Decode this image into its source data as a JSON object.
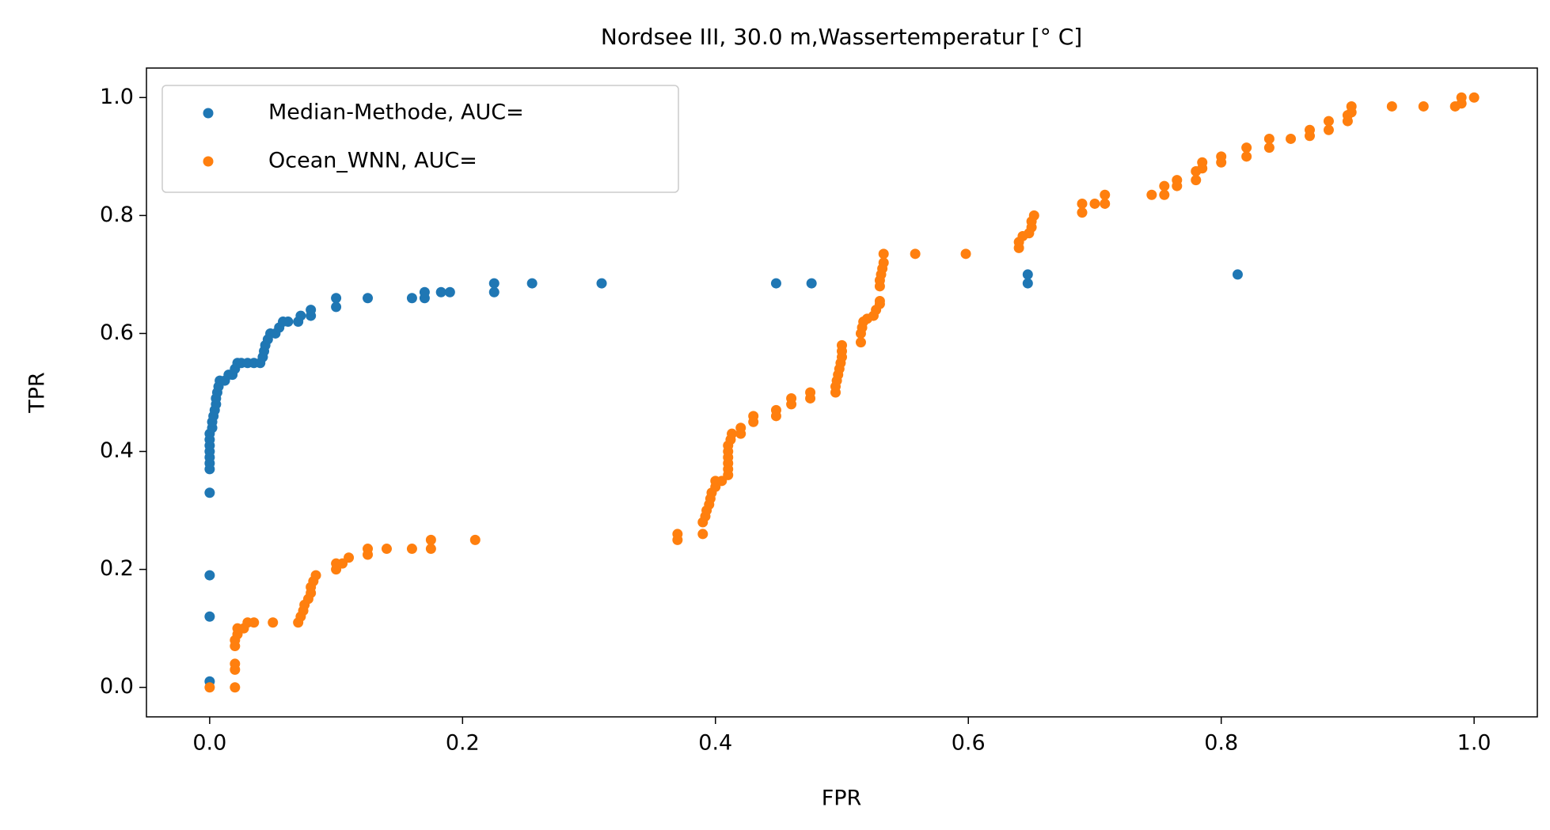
{
  "chart_data": {
    "type": "scatter",
    "title": "Nordsee III, 30.0 m,Wassertemperatur [° C]",
    "x_label": "FPR",
    "y_label": "TPR",
    "xlim": [
      -0.05,
      1.05
    ],
    "ylim": [
      -0.05,
      1.05
    ],
    "xticks": [
      {
        "value": 0,
        "label": "0.0"
      },
      0.2,
      0.4,
      0.6,
      0.8,
      {
        "value": 1,
        "label": "1.0"
      }
    ],
    "yticks": [
      {
        "value": 0,
        "label": "0.0"
      },
      0.2,
      0.4,
      0.6,
      0.8,
      {
        "value": 1,
        "label": "1.0"
      }
    ],
    "legend": "upper left",
    "series": [
      {
        "name": "Median-Methode, AUC=",
        "color": "#1f77b4",
        "x": [
          0,
          0,
          0,
          0,
          0,
          0,
          0,
          0,
          0,
          0,
          0,
          0.002,
          0.002,
          0.003,
          0.004,
          0.005,
          0.005,
          0.006,
          0.007,
          0.008,
          0.012,
          0.015,
          0.018,
          0.02,
          0.022,
          0.025,
          0.03,
          0.035,
          0.04,
          0.042,
          0.043,
          0.044,
          0.046,
          0.048,
          0.052,
          0.055,
          0.058,
          0.062,
          0.07,
          0.072,
          0.08,
          0.08,
          0.1,
          0.1,
          0.125,
          0.16,
          0.17,
          0.17,
          0.183,
          0.19,
          0.225,
          0.225,
          0.255,
          0.31,
          0.448,
          0.476,
          0.647,
          0.647,
          0.813
        ],
        "values": [
          0.01,
          0.12,
          0.19,
          0.33,
          0.37,
          0.38,
          0.39,
          0.4,
          0.41,
          0.42,
          0.43,
          0.44,
          0.45,
          0.46,
          0.47,
          0.48,
          0.49,
          0.5,
          0.51,
          0.52,
          0.52,
          0.53,
          0.53,
          0.54,
          0.55,
          0.55,
          0.55,
          0.55,
          0.55,
          0.56,
          0.57,
          0.58,
          0.59,
          0.6,
          0.6,
          0.61,
          0.62,
          0.62,
          0.62,
          0.63,
          0.63,
          0.64,
          0.645,
          0.66,
          0.66,
          0.66,
          0.66,
          0.67,
          0.67,
          0.67,
          0.67,
          0.685,
          0.685,
          0.685,
          0.685,
          0.685,
          0.685,
          0.7,
          0.7
        ]
      },
      {
        "name": "Ocean_WNN, AUC=",
        "color": "#ff7f0e",
        "x": [
          0,
          0.02,
          0.02,
          0.02,
          0.02,
          0.02,
          0.022,
          0.022,
          0.027,
          0.03,
          0.035,
          0.05,
          0.07,
          0.072,
          0.074,
          0.075,
          0.078,
          0.08,
          0.08,
          0.082,
          0.084,
          0.1,
          0.1,
          0.105,
          0.11,
          0.125,
          0.125,
          0.14,
          0.16,
          0.175,
          0.175,
          0.21,
          0.37,
          0.37,
          0.39,
          0.39,
          0.392,
          0.393,
          0.395,
          0.396,
          0.397,
          0.4,
          0.4,
          0.405,
          0.41,
          0.41,
          0.41,
          0.41,
          0.41,
          0.41,
          0.412,
          0.413,
          0.42,
          0.42,
          0.43,
          0.43,
          0.448,
          0.448,
          0.46,
          0.46,
          0.475,
          0.475,
          0.495,
          0.495,
          0.496,
          0.497,
          0.498,
          0.499,
          0.5,
          0.5,
          0.5,
          0.515,
          0.515,
          0.516,
          0.517,
          0.52,
          0.525,
          0.527,
          0.53,
          0.53,
          0.53,
          0.53,
          0.531,
          0.532,
          0.533,
          0.533,
          0.558,
          0.598,
          0.64,
          0.64,
          0.643,
          0.648,
          0.65,
          0.65,
          0.652,
          0.69,
          0.69,
          0.7,
          0.708,
          0.708,
          0.745,
          0.755,
          0.755,
          0.765,
          0.765,
          0.78,
          0.78,
          0.785,
          0.785,
          0.8,
          0.8,
          0.82,
          0.82,
          0.838,
          0.838,
          0.855,
          0.87,
          0.87,
          0.885,
          0.885,
          0.9,
          0.9,
          0.903,
          0.903,
          0.935,
          0.96,
          0.985,
          0.99,
          0.99,
          1
        ],
        "values": [
          0,
          0,
          0.03,
          0.04,
          0.07,
          0.08,
          0.09,
          0.1,
          0.1,
          0.11,
          0.11,
          0.11,
          0.11,
          0.12,
          0.13,
          0.14,
          0.15,
          0.16,
          0.17,
          0.18,
          0.19,
          0.2,
          0.21,
          0.21,
          0.22,
          0.225,
          0.235,
          0.235,
          0.235,
          0.235,
          0.25,
          0.25,
          0.25,
          0.26,
          0.26,
          0.28,
          0.29,
          0.3,
          0.31,
          0.32,
          0.33,
          0.34,
          0.35,
          0.35,
          0.36,
          0.37,
          0.38,
          0.39,
          0.4,
          0.41,
          0.42,
          0.43,
          0.43,
          0.44,
          0.45,
          0.46,
          0.46,
          0.47,
          0.48,
          0.49,
          0.49,
          0.5,
          0.5,
          0.51,
          0.52,
          0.53,
          0.54,
          0.55,
          0.56,
          0.57,
          0.58,
          0.585,
          0.6,
          0.61,
          0.62,
          0.625,
          0.63,
          0.64,
          0.65,
          0.655,
          0.68,
          0.69,
          0.7,
          0.71,
          0.72,
          0.735,
          0.735,
          0.735,
          0.745,
          0.755,
          0.765,
          0.77,
          0.78,
          0.79,
          0.8,
          0.805,
          0.82,
          0.82,
          0.82,
          0.835,
          0.835,
          0.835,
          0.85,
          0.85,
          0.86,
          0.86,
          0.875,
          0.88,
          0.89,
          0.89,
          0.9,
          0.9,
          0.915,
          0.915,
          0.93,
          0.93,
          0.935,
          0.945,
          0.945,
          0.96,
          0.96,
          0.97,
          0.975,
          0.985,
          0.985,
          0.985,
          0.985,
          0.99,
          1,
          1
        ]
      }
    ]
  }
}
